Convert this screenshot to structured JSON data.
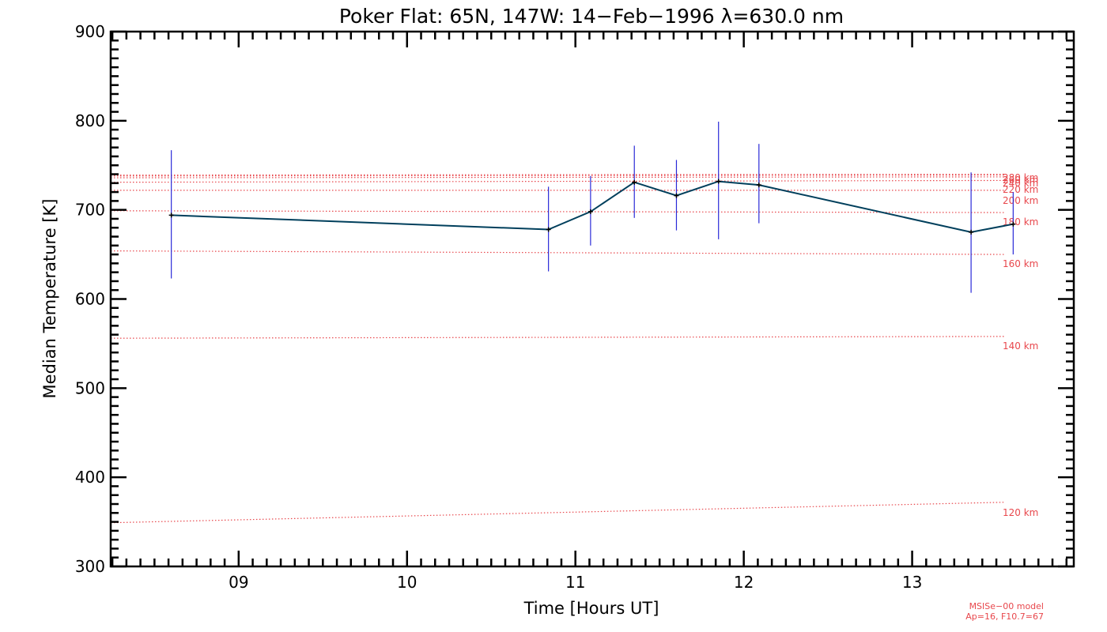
{
  "chart_data": {
    "type": "line",
    "title": "Poker Flat: 65N, 147W: 14−Feb−1996 λ=630.0 nm",
    "xlabel": "Time [Hours UT]",
    "ylabel": "Median Temperature [K]",
    "xlim": [
      8.24,
      13.96
    ],
    "ylim": [
      300,
      900
    ],
    "x_ticks": [
      9,
      10,
      11,
      12,
      13
    ],
    "x_tick_labels": [
      "09",
      "10",
      "11",
      "12",
      "13"
    ],
    "y_ticks": [
      300,
      400,
      500,
      600,
      700,
      800,
      900
    ],
    "grid": false,
    "series": [
      {
        "color": "#003f5c",
        "points": [
          {
            "x": 8.6,
            "y": 694,
            "err_lo": 623,
            "err_hi": 767
          },
          {
            "x": 10.84,
            "y": 678,
            "err_lo": 631,
            "err_hi": 726
          },
          {
            "x": 11.09,
            "y": 698,
            "err_lo": 660,
            "err_hi": 738
          },
          {
            "x": 11.35,
            "y": 731,
            "err_lo": 691,
            "err_hi": 772
          },
          {
            "x": 11.6,
            "y": 716,
            "err_lo": 677,
            "err_hi": 756
          },
          {
            "x": 11.85,
            "y": 732,
            "err_lo": 667,
            "err_hi": 799
          },
          {
            "x": 12.09,
            "y": 728,
            "err_lo": 685,
            "err_hi": 774
          },
          {
            "x": 13.35,
            "y": 675,
            "err_lo": 607,
            "err_hi": 742
          },
          {
            "x": 13.6,
            "y": 684,
            "err_lo": 650,
            "err_hi": 720
          }
        ]
      }
    ],
    "model_curves": [
      {
        "label": "120 km",
        "t_start": 349,
        "t_end": 372
      },
      {
        "label": "140 km",
        "t_start": 556,
        "t_end": 558
      },
      {
        "label": "160 km",
        "t_start": 654,
        "t_end": 650
      },
      {
        "label": "180 km",
        "t_start": 699,
        "t_end": 697
      },
      {
        "label": "200 km",
        "t_start": 722,
        "t_end": 722
      },
      {
        "label": "220 km",
        "t_start": 731,
        "t_end": 733
      },
      {
        "label": "240 km",
        "t_start": 736,
        "t_end": 737
      },
      {
        "label": "260 km",
        "t_start": 738,
        "t_end": 739
      },
      {
        "label": "280 km",
        "t_start": 739,
        "t_end": 740
      }
    ],
    "model_color": "#e8474c",
    "model_x_range": [
      8.24,
      13.55
    ],
    "model_note": [
      "MSISe−00 model",
      "Ap=16, F10.7=67"
    ]
  }
}
